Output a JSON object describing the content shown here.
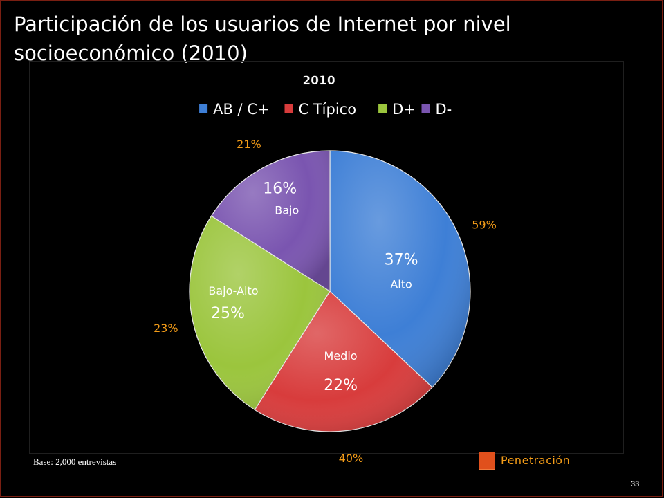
{
  "slide": {
    "title": "Participación de los usuarios de Internet por nivel socioeconómico (2010)",
    "footer_note": "Base: 2,000 entrevistas",
    "penetration_label": "Penetración",
    "page_number": "33"
  },
  "colors": {
    "background": "#000000",
    "penetration_text": "#f39c18",
    "penetration_swatch": "#e0501c"
  },
  "chart_data": {
    "type": "pie",
    "title": "2010",
    "legend_position": "top",
    "categories": [
      "AB / C+",
      "C Típico",
      "D+",
      "D-"
    ],
    "values": [
      37,
      22,
      25,
      16
    ],
    "value_labels": [
      "37%",
      "22%",
      "25%",
      "16%"
    ],
    "slice_labels": [
      "Alto",
      "Medio",
      "Bajo-Alto",
      "Bajo"
    ],
    "penetration_labels": [
      "59%",
      "40%",
      "23%",
      "21%"
    ],
    "colors": [
      "#3e7fd6",
      "#d83c3c",
      "#9bc53d",
      "#7a55b0"
    ],
    "start_angle_deg": 0,
    "direction": "clockwise"
  }
}
